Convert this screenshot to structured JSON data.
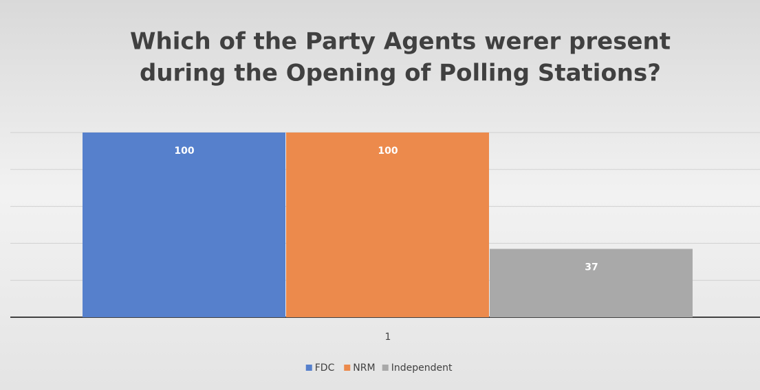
{
  "chart_data": {
    "type": "bar",
    "title": [
      "Which of the Party Agents werer present",
      "during the Opening of Polling Stations?"
    ],
    "categories": [
      "1"
    ],
    "series": [
      {
        "name": "FDC",
        "color": "#5680cc",
        "values": [
          100
        ]
      },
      {
        "name": "NRM",
        "color": "#ec8a4c",
        "values": [
          100
        ]
      },
      {
        "name": "Independent",
        "color": "#a9a9a9",
        "values": [
          37
        ]
      }
    ],
    "ylim": [
      0,
      100
    ],
    "yticks": [
      0,
      20,
      40,
      60,
      80,
      100
    ],
    "grid": true,
    "legend": "bottom"
  }
}
